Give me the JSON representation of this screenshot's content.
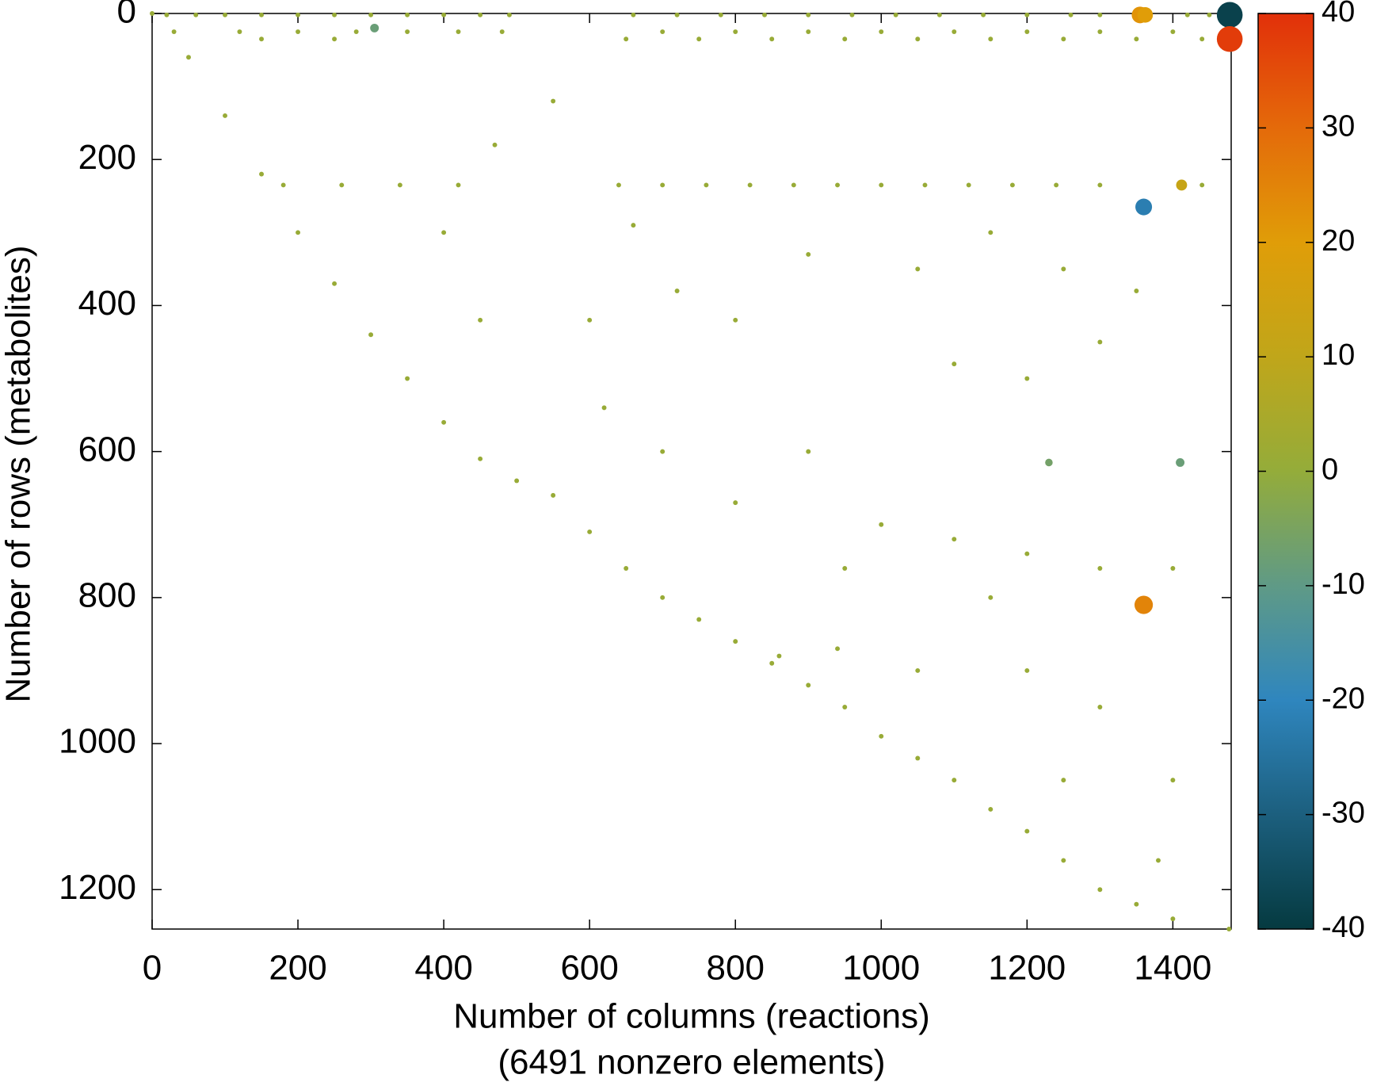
{
  "chart_data": {
    "type": "scatter",
    "xlabel": "Number of columns (reactions)",
    "xlabel2": "(6491 nonzero elements)",
    "ylabel": "Number of rows (metabolites)",
    "xlim": [
      0,
      1480
    ],
    "ylim": [
      1254,
      0
    ],
    "xticks": [
      0,
      200,
      400,
      600,
      800,
      1000,
      1200,
      1400
    ],
    "yticks": [
      0,
      200,
      400,
      600,
      800,
      1000,
      1200
    ],
    "clim": [
      -40,
      40
    ],
    "cticks": [
      -40,
      -30,
      -20,
      -10,
      0,
      10,
      20,
      30,
      40
    ],
    "colormap": [
      "#053a40",
      "#1c5f7e",
      "#2f86be",
      "#5f9a86",
      "#94ac3a",
      "#c0a61a",
      "#e09d08",
      "#e46a0a",
      "#e2300a"
    ],
    "series": [
      {
        "x": [
          0,
          50,
          100,
          150,
          200,
          250,
          300,
          350,
          400,
          450,
          500,
          550,
          600,
          650,
          700,
          750,
          800,
          850,
          900,
          950,
          1000,
          1050,
          1100,
          1150,
          1200,
          1250,
          1300,
          1350,
          1400,
          1477
        ],
        "values": [
          0,
          60,
          140,
          220,
          300,
          370,
          440,
          500,
          560,
          610,
          640,
          660,
          710,
          760,
          800,
          830,
          860,
          890,
          920,
          950,
          990,
          1020,
          1050,
          1090,
          1120,
          1160,
          1200,
          1220,
          1240,
          1254
        ],
        "color_values": [
          1,
          1,
          1,
          1,
          1,
          1,
          1,
          1,
          1,
          1,
          1,
          1,
          1,
          1,
          1,
          1,
          1,
          1,
          1,
          1,
          1,
          1,
          1,
          1,
          1,
          1,
          1,
          1,
          1,
          1
        ]
      },
      {
        "x": [
          20,
          60,
          100,
          150,
          200,
          250,
          300,
          350,
          400,
          450,
          490,
          660,
          720,
          780,
          840,
          900,
          960,
          1020,
          1080,
          1140,
          1200,
          1260,
          1300,
          1420,
          1450
        ],
        "values": [
          2,
          2,
          2,
          2,
          2,
          2,
          2,
          2,
          2,
          2,
          2,
          2,
          2,
          2,
          2,
          2,
          2,
          2,
          2,
          2,
          2,
          2,
          2,
          2,
          2
        ],
        "color_values": [
          1,
          1,
          1,
          1,
          1,
          1,
          1,
          1,
          1,
          1,
          1,
          1,
          1,
          1,
          1,
          1,
          1,
          1,
          1,
          1,
          1,
          1,
          1,
          1,
          1
        ]
      },
      {
        "x": [
          30,
          120,
          200,
          280,
          350,
          420,
          480,
          700,
          800,
          900,
          1000,
          1100,
          1200,
          1300,
          1400
        ],
        "values": [
          25,
          25,
          25,
          25,
          25,
          25,
          25,
          25,
          25,
          25,
          25,
          25,
          25,
          25,
          25
        ],
        "color_values": [
          1,
          1,
          1,
          1,
          1,
          1,
          1,
          1,
          1,
          1,
          1,
          1,
          1,
          1,
          1
        ]
      },
      {
        "x": [
          150,
          250,
          650,
          750,
          850,
          950,
          1050,
          1150,
          1250,
          1350,
          1440
        ],
        "values": [
          35,
          35,
          35,
          35,
          35,
          35,
          35,
          35,
          35,
          35,
          35
        ],
        "color_values": [
          1,
          1,
          1,
          1,
          1,
          1,
          1,
          1,
          1,
          1,
          1
        ]
      },
      {
        "x": [
          180,
          260,
          340,
          420,
          640,
          700,
          760,
          820,
          880,
          940,
          1000,
          1060,
          1120,
          1180,
          1240,
          1300,
          1440
        ],
        "values": [
          235,
          235,
          235,
          235,
          235,
          235,
          235,
          235,
          235,
          235,
          235,
          235,
          235,
          235,
          235,
          235,
          235
        ],
        "color_values": [
          1,
          1,
          1,
          1,
          1,
          1,
          1,
          1,
          1,
          1,
          1,
          1,
          1,
          1,
          1,
          1,
          1
        ]
      },
      {
        "x": [
          550,
          470,
          600,
          620,
          660,
          720,
          800,
          900,
          1050,
          1150,
          1250,
          1350,
          400,
          450,
          1100,
          1200,
          1300,
          700,
          800,
          900,
          1000,
          1100,
          1200,
          1300,
          1400,
          950,
          1150,
          860,
          1200,
          1300,
          1250,
          1400,
          1380,
          940,
          1050
        ],
        "values": [
          120,
          180,
          420,
          540,
          290,
          380,
          420,
          330,
          350,
          300,
          350,
          380,
          300,
          420,
          480,
          500,
          450,
          600,
          670,
          600,
          700,
          720,
          740,
          760,
          760,
          760,
          800,
          880,
          900,
          950,
          1050,
          1050,
          1160,
          870,
          900
        ],
        "color_values": [
          1,
          1,
          1,
          1,
          1,
          1,
          1,
          1,
          1,
          1,
          1,
          1,
          1,
          1,
          1,
          1,
          1,
          1,
          1,
          1,
          1,
          1,
          1,
          1,
          1,
          1,
          1,
          1,
          1,
          1,
          1,
          1,
          1,
          1,
          1
        ]
      },
      {
        "x": [
          1355,
          1362,
          1478,
          1478,
          1360,
          1360,
          1412,
          1230,
          1410,
          305
        ],
        "values": [
          2,
          2,
          2,
          35,
          265,
          810,
          235,
          615,
          615,
          20
        ],
        "color_values": [
          22,
          20,
          -38,
          38,
          -22,
          25,
          12,
          -6,
          -8,
          -8
        ]
      }
    ]
  }
}
